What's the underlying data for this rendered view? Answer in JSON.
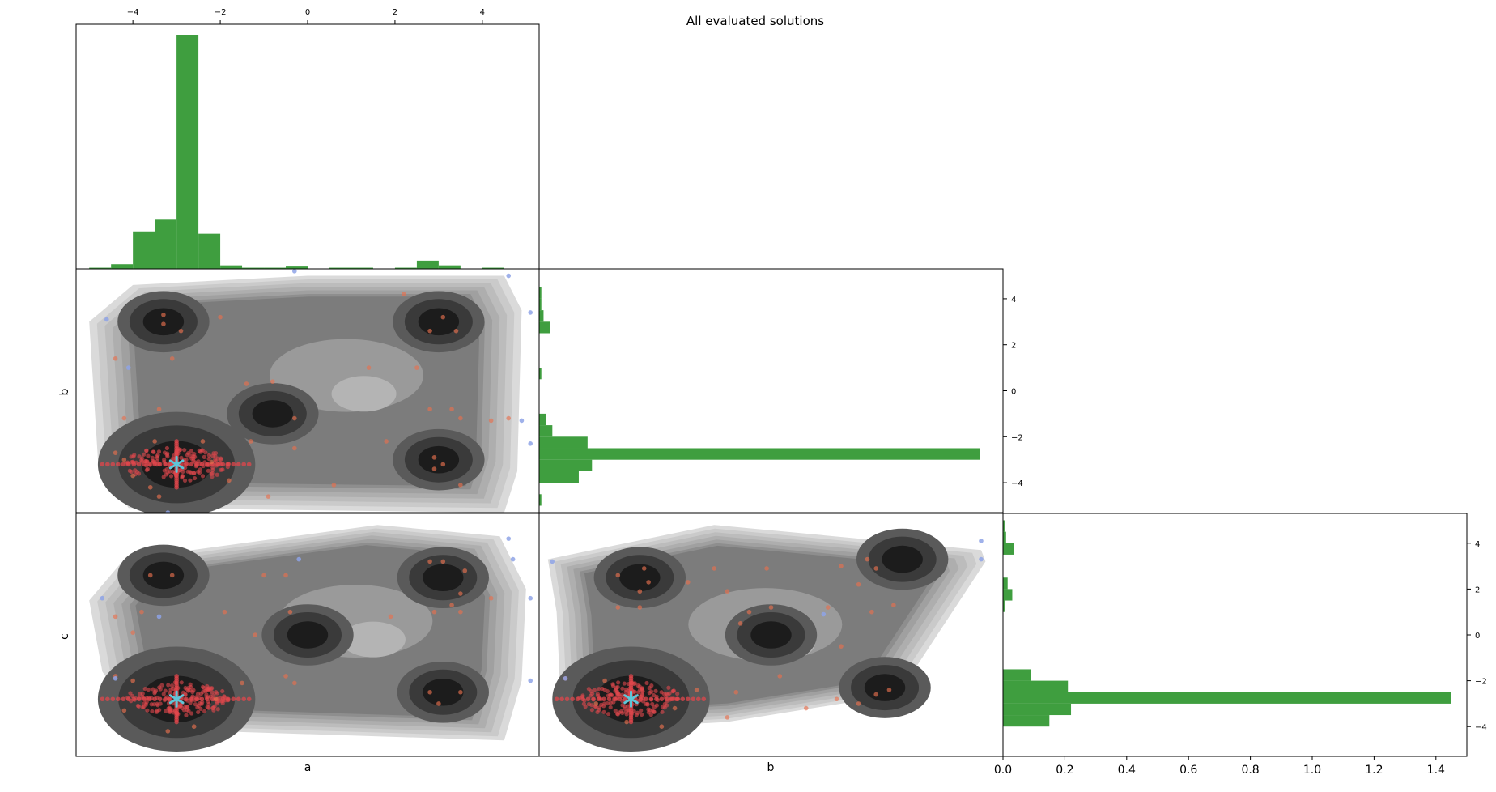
{
  "chart_data": {
    "type": "corner-plot",
    "title": "All evaluated solutions",
    "variables": [
      "a",
      "b",
      "c"
    ],
    "xlabels": [
      "a",
      "b"
    ],
    "ylabels": [
      "b",
      "c"
    ],
    "top_axis_ticks": [
      "−4",
      "−2",
      "0",
      "2",
      "4"
    ],
    "right_axis_ticks": [
      "4",
      "2",
      "0",
      "−2",
      "−4"
    ],
    "histogram_bottom_ticks": [
      "0.0",
      "0.2",
      "0.4",
      "0.6",
      "0.8",
      "1.0",
      "1.2",
      "1.4"
    ],
    "colors": {
      "histogram": "#3f9e3f",
      "good_points": "#e0474c",
      "best_marker": "#5ec6d8",
      "poor_points": "#8ea3e6"
    },
    "best_solution": {
      "a": -3.0,
      "b": -3.2,
      "c": -2.8
    },
    "hist_a": {
      "bin_edges": [
        -5.0,
        -4.5,
        -4.0,
        -3.5,
        -3.0,
        -2.5,
        -2.0,
        -1.5,
        -1.0,
        -0.5,
        0.0,
        0.5,
        1.0,
        1.5,
        2.0,
        2.5,
        3.0,
        3.5,
        4.0,
        4.5,
        5.0
      ],
      "density": [
        0.005,
        0.02,
        0.16,
        0.21,
        1.0,
        0.15,
        0.015,
        0.005,
        0.005,
        0.01,
        0.0,
        0.005,
        0.005,
        0.0,
        0.005,
        0.035,
        0.015,
        0.0,
        0.005,
        0.0
      ]
    },
    "hist_b": {
      "bin_edges": [
        -5.0,
        -4.5,
        -4.0,
        -3.5,
        -3.0,
        -2.5,
        -2.0,
        -1.5,
        -1.0,
        -0.5,
        0.0,
        0.5,
        1.0,
        1.5,
        2.0,
        2.5,
        3.0,
        3.5,
        4.0,
        4.5,
        5.0
      ],
      "density": [
        0.005,
        0.0,
        0.09,
        0.12,
        1.0,
        0.11,
        0.03,
        0.015,
        0.0,
        0.0,
        0.0,
        0.005,
        0.0,
        0.0,
        0.0,
        0.025,
        0.01,
        0.005,
        0.005,
        0.0
      ]
    },
    "hist_c": {
      "bin_edges": [
        -5.0,
        -4.5,
        -4.0,
        -3.5,
        -3.0,
        -2.5,
        -2.0,
        -1.5,
        -1.0,
        -0.5,
        0.0,
        0.5,
        1.0,
        1.5,
        2.0,
        2.5,
        3.0,
        3.5,
        4.0,
        4.5,
        5.0
      ],
      "density": [
        0.0,
        0.0,
        0.15,
        0.22,
        1.45,
        0.21,
        0.09,
        0.0,
        0.0,
        0.0,
        0.0,
        0.0,
        0.005,
        0.03,
        0.015,
        0.0,
        0.0,
        0.035,
        0.01,
        0.005
      ]
    },
    "hull_ab": [
      [
        -5.0,
        3.0
      ],
      [
        -4.0,
        4.6
      ],
      [
        0.0,
        5.0
      ],
      [
        4.5,
        5.0
      ],
      [
        4.9,
        3.5
      ],
      [
        4.8,
        -3.5
      ],
      [
        4.5,
        -5.3
      ],
      [
        -4.1,
        -5.1
      ],
      [
        -4.8,
        -3.0
      ]
    ],
    "hull_ac": [
      [
        -5.0,
        1.5
      ],
      [
        -4.2,
        3.3
      ],
      [
        1.6,
        4.8
      ],
      [
        4.4,
        4.3
      ],
      [
        5.0,
        2.0
      ],
      [
        4.9,
        -2.0
      ],
      [
        4.5,
        -4.6
      ],
      [
        -3.8,
        -4.1
      ],
      [
        -4.7,
        -1.6
      ]
    ],
    "hull_bc": [
      [
        -5.1,
        3.3
      ],
      [
        -1.3,
        4.8
      ],
      [
        4.8,
        3.7
      ],
      [
        4.9,
        3.2
      ],
      [
        2.9,
        -2.6
      ],
      [
        -1.0,
        -3.8
      ],
      [
        -3.9,
        -4.1
      ],
      [
        -4.8,
        -3.2
      ],
      [
        -4.9,
        1.0
      ]
    ],
    "minima_ab": [
      [
        -3.0,
        -3.2
      ],
      [
        -3.3,
        3.0
      ],
      [
        3.0,
        3.0
      ],
      [
        3.0,
        -3.0
      ],
      [
        -0.8,
        -1.0
      ]
    ],
    "minima_ac": [
      [
        -3.0,
        -2.8
      ],
      [
        -3.3,
        2.6
      ],
      [
        3.1,
        2.5
      ],
      [
        3.1,
        -2.5
      ],
      [
        0.0,
        0.0
      ]
    ],
    "minima_bc": [
      [
        -3.2,
        -2.8
      ],
      [
        -3.0,
        2.5
      ],
      [
        2.6,
        -2.3
      ],
      [
        0.0,
        0.0
      ],
      [
        3.0,
        3.3
      ]
    ],
    "scatter_ab": [
      [
        -4.4,
        1.4
      ],
      [
        -3.3,
        3.3
      ],
      [
        -3.3,
        2.9
      ],
      [
        -2.9,
        2.6
      ],
      [
        -2.0,
        3.2
      ],
      [
        3.1,
        3.2
      ],
      [
        2.8,
        2.6
      ],
      [
        3.4,
        2.6
      ],
      [
        2.2,
        4.2
      ],
      [
        2.5,
        1.0
      ],
      [
        1.4,
        1.0
      ],
      [
        -3.1,
        1.4
      ],
      [
        -0.8,
        0.4
      ],
      [
        -1.4,
        0.3
      ],
      [
        -3.4,
        -0.8
      ],
      [
        -4.2,
        -1.2
      ],
      [
        -1.3,
        -2.2
      ],
      [
        -0.3,
        -1.2
      ],
      [
        -0.3,
        -2.5
      ],
      [
        3.3,
        -0.8
      ],
      [
        2.8,
        -0.8
      ],
      [
        3.5,
        -1.2
      ],
      [
        4.2,
        -1.3
      ],
      [
        4.6,
        -1.2
      ],
      [
        2.9,
        -2.9
      ],
      [
        3.1,
        -3.2
      ],
      [
        2.9,
        -3.4
      ],
      [
        3.5,
        -4.1
      ],
      [
        -0.9,
        -4.6
      ],
      [
        -1.8,
        -3.9
      ],
      [
        -2.2,
        -3.1
      ],
      [
        0.6,
        -4.1
      ],
      [
        -4.4,
        -2.7
      ],
      [
        -4.2,
        -3.0
      ],
      [
        -4.0,
        -3.7
      ],
      [
        -3.6,
        -4.2
      ],
      [
        -3.4,
        -4.6
      ],
      [
        -2.4,
        -2.2
      ],
      [
        -3.5,
        -2.2
      ],
      [
        1.8,
        -2.2
      ]
    ],
    "scatter_ac": [
      [
        -3.6,
        2.6
      ],
      [
        -3.1,
        2.6
      ],
      [
        -1.0,
        2.6
      ],
      [
        -0.5,
        2.6
      ],
      [
        -0.4,
        1.0
      ],
      [
        -1.9,
        1.0
      ],
      [
        -3.8,
        1.0
      ],
      [
        -4.4,
        0.8
      ],
      [
        -4.0,
        0.1
      ],
      [
        -1.2,
        0.0
      ],
      [
        1.9,
        0.8
      ],
      [
        2.9,
        1.0
      ],
      [
        3.3,
        1.3
      ],
      [
        3.5,
        1.0
      ],
      [
        2.8,
        3.2
      ],
      [
        3.1,
        3.2
      ],
      [
        3.6,
        2.8
      ],
      [
        3.5,
        1.8
      ],
      [
        4.2,
        1.6
      ],
      [
        -4.4,
        -1.8
      ],
      [
        -4.0,
        -2.0
      ],
      [
        -4.2,
        -3.3
      ],
      [
        -3.2,
        -4.2
      ],
      [
        -2.6,
        -4.0
      ],
      [
        -2.1,
        -2.8
      ],
      [
        -1.5,
        -2.1
      ],
      [
        -0.3,
        -2.1
      ],
      [
        2.8,
        -2.5
      ],
      [
        3.5,
        -2.5
      ],
      [
        3.0,
        -3.0
      ],
      [
        -0.5,
        -1.8
      ]
    ],
    "scatter_bc": [
      [
        -3.5,
        2.6
      ],
      [
        -2.8,
        2.3
      ],
      [
        -3.0,
        1.9
      ],
      [
        -1.0,
        1.9
      ],
      [
        -1.9,
        2.3
      ],
      [
        -3.0,
        1.2
      ],
      [
        -3.5,
        1.2
      ],
      [
        -2.9,
        2.9
      ],
      [
        -1.3,
        2.9
      ],
      [
        -0.1,
        2.9
      ],
      [
        1.6,
        3.0
      ],
      [
        2.2,
        3.3
      ],
      [
        2.4,
        2.9
      ],
      [
        2.0,
        2.2
      ],
      [
        0.0,
        1.2
      ],
      [
        -0.5,
        1.0
      ],
      [
        -0.7,
        0.5
      ],
      [
        1.3,
        1.2
      ],
      [
        2.3,
        1.0
      ],
      [
        2.8,
        1.3
      ],
      [
        -4.7,
        -1.9
      ],
      [
        -3.8,
        -2.0
      ],
      [
        -4.0,
        -3.0
      ],
      [
        -3.3,
        -3.8
      ],
      [
        -2.5,
        -4.0
      ],
      [
        -2.2,
        -3.2
      ],
      [
        -1.7,
        -2.4
      ],
      [
        -1.0,
        -3.6
      ],
      [
        0.8,
        -3.2
      ],
      [
        1.5,
        -2.8
      ],
      [
        2.0,
        -3.0
      ],
      [
        2.4,
        -2.6
      ],
      [
        2.7,
        -2.4
      ],
      [
        -0.8,
        -2.5
      ],
      [
        0.2,
        -1.8
      ],
      [
        1.6,
        -0.5
      ]
    ],
    "blue_ab": [
      [
        -4.6,
        3.1
      ],
      [
        -0.3,
        5.2
      ],
      [
        4.6,
        5.0
      ],
      [
        5.1,
        3.4
      ],
      [
        5.1,
        -2.3
      ],
      [
        4.7,
        -5.4
      ],
      [
        -3.2,
        -5.3
      ],
      [
        -4.1,
        1.0
      ],
      [
        4.9,
        -1.3
      ]
    ],
    "blue_ac": [
      [
        -4.7,
        1.6
      ],
      [
        -0.2,
        3.3
      ],
      [
        4.6,
        4.2
      ],
      [
        4.7,
        3.3
      ],
      [
        5.1,
        1.6
      ],
      [
        5.1,
        -2.0
      ],
      [
        -3.4,
        0.8
      ],
      [
        -4.4,
        -1.9
      ]
    ],
    "blue_bc": [
      [
        -5.0,
        3.2
      ],
      [
        4.8,
        4.1
      ],
      [
        4.8,
        3.3
      ],
      [
        -4.7,
        -1.9
      ],
      [
        1.2,
        0.9
      ]
    ]
  }
}
